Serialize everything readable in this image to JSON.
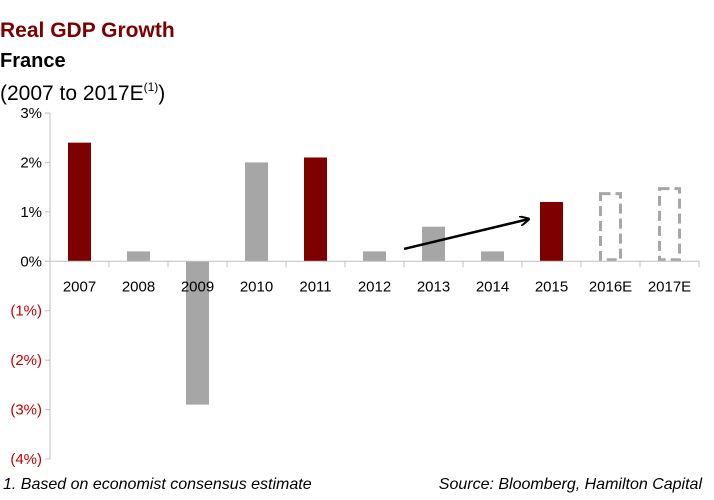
{
  "title": "Real GDP Growth",
  "subtitle": "France",
  "subtitle2_main": "(2007 to 2017E",
  "subtitle2_sup": "(1)",
  "subtitle2_close": ")",
  "footnote": "1. Based on economist consensus estimate",
  "source": "Source: Bloomberg, Hamilton Capital",
  "colors": {
    "title": "#7b0000",
    "highlight": "#7f0000",
    "normal": "#a6a6a6",
    "negative_tick": "#c00000",
    "estimate_outline": "#a6a6a6",
    "axis": "#bfbfbf"
  },
  "chart_data": {
    "type": "bar",
    "categories": [
      "2007",
      "2008",
      "2009",
      "2010",
      "2011",
      "2012",
      "2013",
      "2014",
      "2015",
      "2016E",
      "2017E"
    ],
    "values": [
      2.4,
      0.2,
      -2.9,
      2.0,
      2.1,
      0.2,
      0.7,
      0.2,
      1.2,
      1.4,
      1.5
    ],
    "highlight": [
      true,
      false,
      false,
      false,
      true,
      false,
      false,
      false,
      true,
      false,
      false
    ],
    "estimate": [
      false,
      false,
      false,
      false,
      false,
      false,
      false,
      false,
      false,
      true,
      true
    ],
    "ylim": [
      -4,
      3
    ],
    "yticks": [
      3,
      2,
      1,
      0,
      -1,
      -2,
      -3,
      -4
    ],
    "ytick_labels": [
      "3%",
      "2%",
      "1%",
      "0%",
      "(1%)",
      "(2%)",
      "(3%)",
      "(4%)"
    ],
    "annotation": "arrow from 2013 to 2015 indicating upward trend",
    "grid": false
  }
}
